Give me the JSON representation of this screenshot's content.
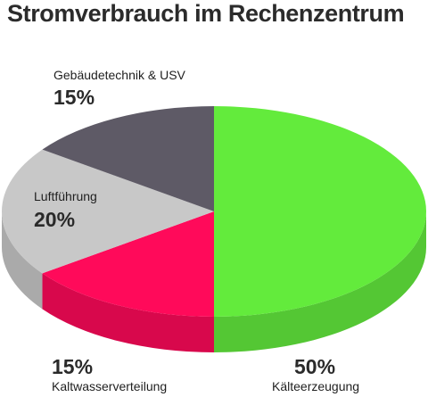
{
  "chart_data": {
    "type": "pie",
    "title": "Stromverbrauch im Rechenzentrum",
    "categories": [
      "Kälteerzeugung",
      "Kaltwasserverteilung",
      "Luftführung",
      "Gebäudetechnik & USV"
    ],
    "values": [
      50,
      15,
      20,
      15
    ],
    "value_labels": [
      "50%",
      "15%",
      "20%",
      "15%"
    ],
    "colors": [
      "#63eb3c",
      "#ff0a5a",
      "#c8c8c8",
      "#5e5a66"
    ],
    "side_colors": [
      "#54c734",
      "#d8084c",
      "#aaaaaa",
      "#4c4852"
    ],
    "style": "3d"
  }
}
